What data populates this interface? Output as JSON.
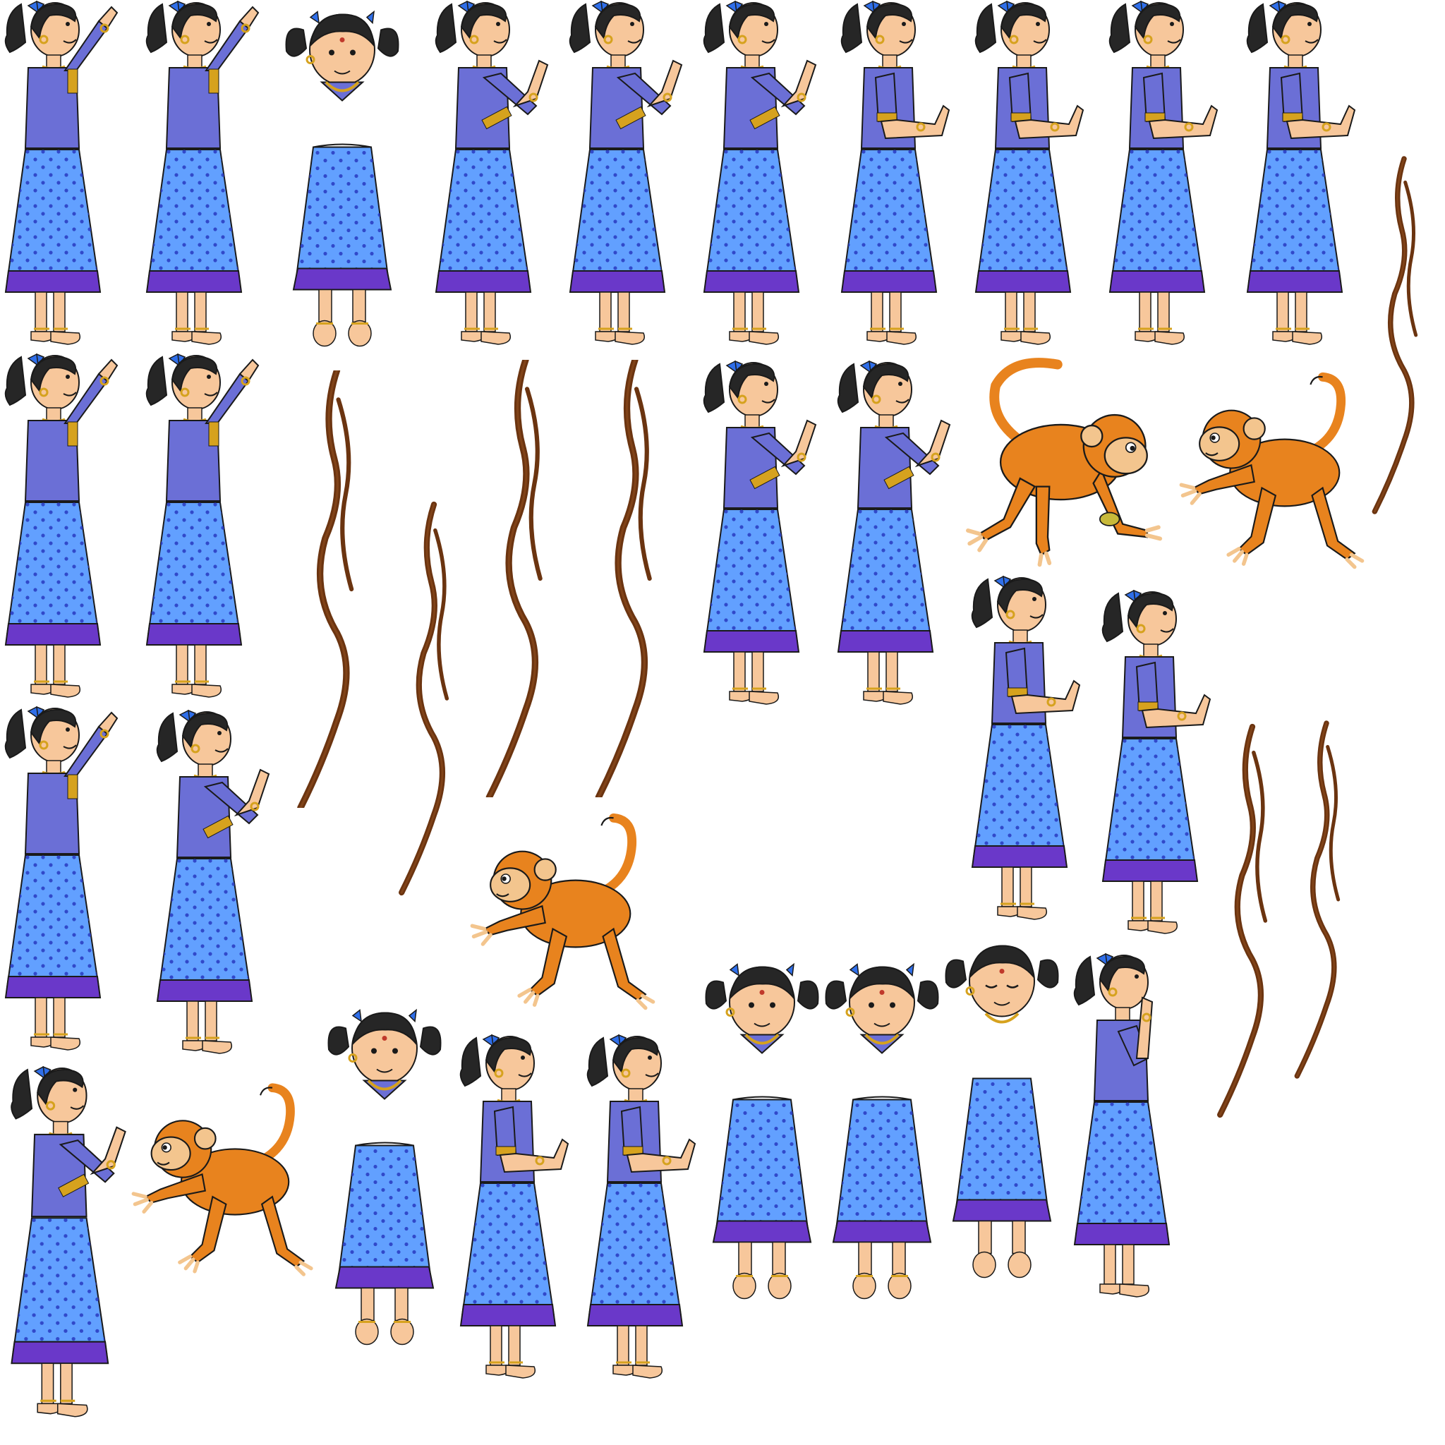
{
  "sprite_sheet": {
    "background": "#ffffff",
    "palette": {
      "hair": "#262626",
      "skin": "#f7c79b",
      "skin_shadow": "#e4a97a",
      "blouse": "#6b6fd6",
      "blouse_dark": "#5a5ec4",
      "skirt": "#62a0ff",
      "skirt_dots": "#2c3fc4",
      "skirt_hem": "#6a38c9",
      "bow": "#2f6ee8",
      "gold": "#d6a21e",
      "outline": "#1a1a1a",
      "monkey_fur": "#e8831e",
      "monkey_face": "#f3c58e",
      "vine": "#6b3410",
      "vine_highlight": "#8a4a1c"
    },
    "sprites": [
      {
        "kind": "girl-full",
        "pose": "reach-up",
        "icon": "girl-reach-up-sprite"
      },
      {
        "kind": "girl-full",
        "pose": "reach-up",
        "icon": "girl-reach-up-sprite"
      },
      {
        "kind": "girl-front-parts",
        "pose": "front",
        "icon": "girl-front-parts-sprite"
      },
      {
        "kind": "girl-full",
        "pose": "reach-forward",
        "icon": "girl-reach-forward-sprite"
      },
      {
        "kind": "girl-full",
        "pose": "reach-forward",
        "icon": "girl-reach-forward-sprite"
      },
      {
        "kind": "girl-full",
        "pose": "reach-forward",
        "icon": "girl-reach-forward-sprite"
      },
      {
        "kind": "girl-full",
        "pose": "hold-out",
        "icon": "girl-hold-out-sprite"
      },
      {
        "kind": "girl-full",
        "pose": "hold-out",
        "icon": "girl-hold-out-sprite"
      },
      {
        "kind": "girl-full",
        "pose": "hold-out",
        "icon": "girl-hold-out-sprite"
      },
      {
        "kind": "girl-full",
        "pose": "hold-out",
        "icon": "girl-hold-out-sprite"
      },
      {
        "kind": "vine",
        "icon": "vine-sprite"
      },
      {
        "kind": "girl-full",
        "pose": "reach-up",
        "icon": "girl-reach-up-sprite"
      },
      {
        "kind": "girl-full",
        "pose": "reach-up",
        "icon": "girl-reach-up-sprite"
      },
      {
        "kind": "vine",
        "icon": "vine-sprite"
      },
      {
        "kind": "vine",
        "icon": "vine-sprite"
      },
      {
        "kind": "vine",
        "icon": "vine-sprite"
      },
      {
        "kind": "vine",
        "icon": "vine-sprite"
      },
      {
        "kind": "girl-full",
        "pose": "reach-forward",
        "icon": "girl-reach-forward-sprite"
      },
      {
        "kind": "girl-full",
        "pose": "reach-forward",
        "icon": "girl-reach-forward-sprite"
      },
      {
        "kind": "monkey",
        "pose": "crouch-eat",
        "icon": "monkey-crouch-sprite"
      },
      {
        "kind": "monkey",
        "pose": "reach",
        "icon": "monkey-reach-sprite"
      },
      {
        "kind": "girl-full",
        "pose": "hold-out",
        "icon": "girl-hold-out-sprite"
      },
      {
        "kind": "girl-full",
        "pose": "hold-out",
        "icon": "girl-hold-out-sprite"
      },
      {
        "kind": "vine",
        "icon": "vine-sprite"
      },
      {
        "kind": "vine",
        "icon": "vine-sprite"
      },
      {
        "kind": "girl-full",
        "pose": "reach-up",
        "icon": "girl-reach-up-sprite"
      },
      {
        "kind": "girl-full",
        "pose": "reach-forward",
        "icon": "girl-reach-forward-sprite"
      },
      {
        "kind": "monkey",
        "pose": "reach",
        "icon": "monkey-reach-sprite"
      },
      {
        "kind": "girl-full",
        "pose": "reach-forward",
        "icon": "girl-reach-forward-sprite"
      },
      {
        "kind": "monkey",
        "pose": "reach",
        "icon": "monkey-reach-sprite"
      },
      {
        "kind": "girl-front-parts",
        "pose": "front",
        "icon": "girl-front-parts-sprite"
      },
      {
        "kind": "girl-full",
        "pose": "hold-out",
        "icon": "girl-hold-out-sprite"
      },
      {
        "kind": "girl-full",
        "pose": "hold-out",
        "icon": "girl-hold-out-sprite"
      },
      {
        "kind": "girl-front-parts",
        "pose": "front",
        "icon": "girl-front-parts-sprite"
      },
      {
        "kind": "girl-front-parts",
        "pose": "front",
        "icon": "girl-front-parts-sprite"
      },
      {
        "kind": "girl-front-parts",
        "pose": "eyes-closed",
        "icon": "girl-eyes-closed-sprite"
      },
      {
        "kind": "girl-full",
        "pose": "hand-to-mouth",
        "icon": "girl-hand-to-mouth-sprite"
      }
    ]
  }
}
